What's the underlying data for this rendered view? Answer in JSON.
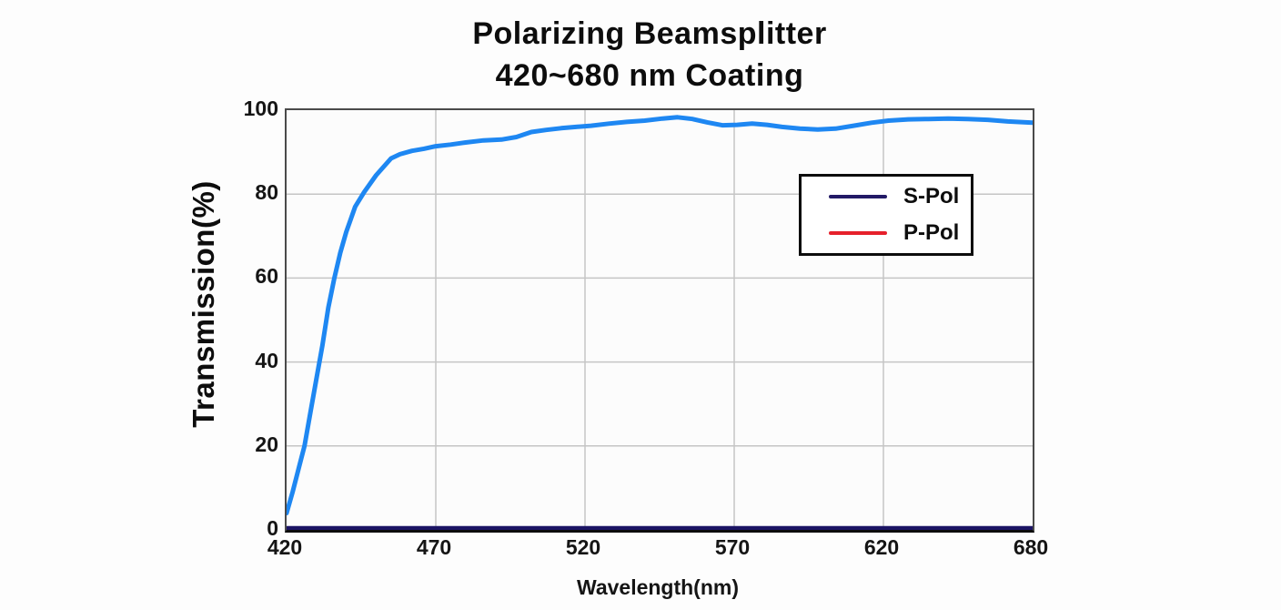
{
  "page": {
    "background": "#fdfdfd"
  },
  "chart_data": {
    "type": "line",
    "title_line1": "Polarizing Beamsplitter",
    "title_line2": "420~680 nm Coating",
    "xlabel": "Wavelength(nm)",
    "ylabel": "Transmission(%)",
    "x_ticks": [
      420,
      470,
      520,
      570,
      620,
      680
    ],
    "y_ticks": [
      0,
      20,
      40,
      60,
      80,
      100
    ],
    "ylim": [
      0,
      100
    ],
    "grid": true,
    "axis_note": "x tick labels are evenly spaced on canvas; the 620-680 segment occupies one tick interval",
    "colors": {
      "plot_background": "#fcfcfc",
      "gridline": "#c5c5c5",
      "plot_border": "#4a4a4a",
      "axis_line": "#0d0d0d",
      "p_pol_curve": "#1e87f2",
      "s_pol_curve": "#1b1464",
      "legend_s_pol_swatch": "#221a66",
      "legend_p_pol_swatch": "#e6202b",
      "text": "#0d0d0d"
    },
    "legend": {
      "position": "upper right",
      "entries": [
        {
          "label": "S-Pol",
          "swatch_color": "#221a66"
        },
        {
          "label": "P-Pol",
          "swatch_color": "#e6202b"
        }
      ]
    },
    "series": [
      {
        "name": "S-Pol",
        "line_color": "#1b1464",
        "line_width": 5,
        "points": [
          [
            420,
            0.4
          ],
          [
            680,
            0.4
          ]
        ]
      },
      {
        "name": "P-Pol",
        "line_color": "#1e87f2",
        "line_width": 5,
        "points": [
          [
            420,
            4
          ],
          [
            422,
            9
          ],
          [
            424,
            14.5
          ],
          [
            426,
            20
          ],
          [
            428,
            28
          ],
          [
            430,
            36
          ],
          [
            432,
            44
          ],
          [
            434,
            53
          ],
          [
            436,
            60
          ],
          [
            438,
            66
          ],
          [
            440,
            71
          ],
          [
            443,
            77
          ],
          [
            446,
            80.5
          ],
          [
            450,
            84.5
          ],
          [
            455,
            88.5
          ],
          [
            458,
            89.5
          ],
          [
            462,
            90.3
          ],
          [
            466,
            90.8
          ],
          [
            470,
            91.4
          ],
          [
            475,
            91.8
          ],
          [
            480,
            92.3
          ],
          [
            486,
            92.8
          ],
          [
            492,
            93
          ],
          [
            497,
            93.6
          ],
          [
            502,
            94.8
          ],
          [
            507,
            95.3
          ],
          [
            512,
            95.7
          ],
          [
            517,
            96
          ],
          [
            522,
            96.3
          ],
          [
            528,
            96.8
          ],
          [
            534,
            97.2
          ],
          [
            540,
            97.5
          ],
          [
            546,
            98
          ],
          [
            551,
            98.3
          ],
          [
            556,
            97.9
          ],
          [
            561,
            97.1
          ],
          [
            566,
            96.4
          ],
          [
            571,
            96.5
          ],
          [
            576,
            96.8
          ],
          [
            581,
            96.5
          ],
          [
            586,
            96
          ],
          [
            592,
            95.6
          ],
          [
            598,
            95.4
          ],
          [
            604,
            95.6
          ],
          [
            610,
            96.3
          ],
          [
            616,
            97
          ],
          [
            622,
            97.5
          ],
          [
            630,
            97.8
          ],
          [
            638,
            97.9
          ],
          [
            646,
            98
          ],
          [
            654,
            97.9
          ],
          [
            662,
            97.7
          ],
          [
            670,
            97.3
          ],
          [
            680,
            97
          ]
        ]
      }
    ]
  }
}
